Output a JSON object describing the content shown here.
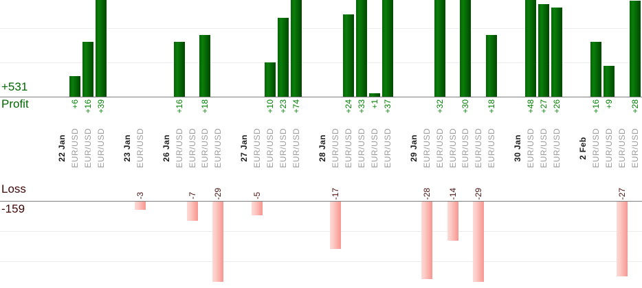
{
  "chart_data": {
    "type": "bar",
    "title": "",
    "xlabel": "",
    "ylabel": "",
    "legend": [],
    "profit_summary": {
      "label": "Profit",
      "total_label": "+531",
      "total": 531
    },
    "loss_summary": {
      "label": "Loss",
      "total_label": "-159",
      "total": -159
    },
    "groups": [
      {
        "date": "22 Jan",
        "trades": [
          {
            "symbol": "EUR/USD",
            "value": 6,
            "label": "+6"
          },
          {
            "symbol": "EUR/USD",
            "value": 16,
            "label": "+16"
          },
          {
            "symbol": "EUR/USD",
            "value": 39,
            "label": "+39"
          }
        ]
      },
      {
        "date": "23 Jan",
        "trades": [
          {
            "symbol": "EUR/USD",
            "value": -3,
            "label": "-3"
          }
        ]
      },
      {
        "date": "26 Jan",
        "trades": [
          {
            "symbol": "EUR/USD",
            "value": 16,
            "label": "+16"
          },
          {
            "symbol": "EUR/USD",
            "value": -7,
            "label": "-7"
          },
          {
            "symbol": "EUR/USD",
            "value": 18,
            "label": "+18"
          },
          {
            "symbol": "EUR/USD",
            "value": -29,
            "label": "-29"
          }
        ]
      },
      {
        "date": "27 Jan",
        "trades": [
          {
            "symbol": "EUR/USD",
            "value": -5,
            "label": "-5"
          },
          {
            "symbol": "EUR/USD",
            "value": 10,
            "label": "+10"
          },
          {
            "symbol": "EUR/USD",
            "value": 23,
            "label": "+23"
          },
          {
            "symbol": "EUR/USD",
            "value": 74,
            "label": "+74"
          }
        ]
      },
      {
        "date": "28 Jan",
        "trades": [
          {
            "symbol": "EUR/USD",
            "value": -17,
            "label": "-17"
          },
          {
            "symbol": "EUR/USD",
            "value": 24,
            "label": "+24"
          },
          {
            "symbol": "EUR/USD",
            "value": 33,
            "label": "+33"
          },
          {
            "symbol": "EUR/USD",
            "value": 1,
            "label": "+1"
          },
          {
            "symbol": "EUR/USD",
            "value": 37,
            "label": "+37"
          }
        ]
      },
      {
        "date": "29 Jan",
        "trades": [
          {
            "symbol": "EUR/USD",
            "value": -28,
            "label": "-28"
          },
          {
            "symbol": "EUR/USD",
            "value": 32,
            "label": "+32"
          },
          {
            "symbol": "EUR/USD",
            "value": -14,
            "label": "-14"
          },
          {
            "symbol": "EUR/USD",
            "value": 30,
            "label": "+30"
          },
          {
            "symbol": "EUR/USD",
            "value": -29,
            "label": "-29"
          },
          {
            "symbol": "EUR/USD",
            "value": 18,
            "label": "+18"
          }
        ]
      },
      {
        "date": "30 Jan",
        "trades": [
          {
            "symbol": "EUR/USD",
            "value": 48,
            "label": "+48"
          },
          {
            "symbol": "EUR/USD",
            "value": 27,
            "label": "+27"
          },
          {
            "symbol": "EUR/USD",
            "value": 26,
            "label": "+26"
          }
        ]
      },
      {
        "date": "2 Feb",
        "trades": [
          {
            "symbol": "EUR/USD",
            "value": 16,
            "label": "+16"
          },
          {
            "symbol": "EUR/USD",
            "value": 9,
            "label": "+9"
          },
          {
            "symbol": "EUR/USD",
            "value": -27,
            "label": "-27"
          },
          {
            "symbol": "EUR/USD",
            "value": 28,
            "label": "+28"
          }
        ]
      }
    ],
    "colors": {
      "profit_text": "#006600",
      "profit_value_text": "#008000",
      "profit_bar": "#0a7e0a",
      "loss_text": "#3c0505",
      "loss_value_text": "#4a1010",
      "loss_bar": "#f8968f",
      "symbol_text": "#9c9c9c",
      "date_text": "#1c1c1c"
    },
    "layout_hints": {
      "grid": true,
      "profit_axis_clipped_at_top": true,
      "profit_gridline_step_units": 10,
      "bars_grouped_by_day": true,
      "label_rotation_degrees": 90
    }
  }
}
